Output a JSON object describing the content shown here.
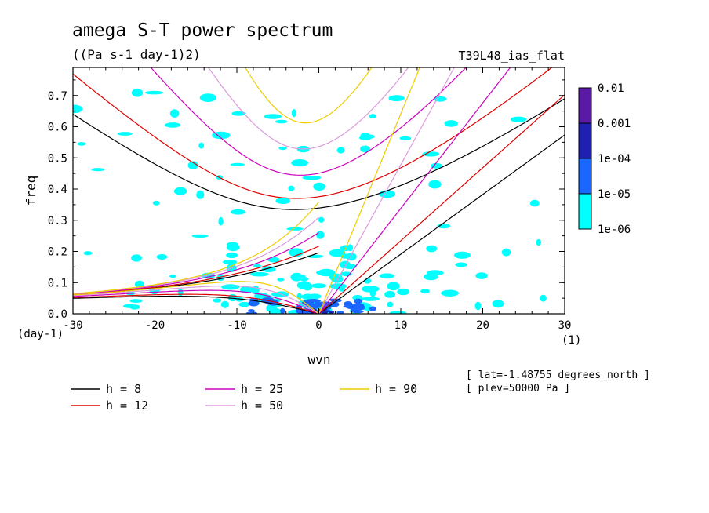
{
  "chart_data": {
    "type": "heatmap",
    "title": "amega S-T power spectrum",
    "subtitle": "((Pa s-1 day-1)2)",
    "run_label": "T39L48_ias_flat",
    "xlabel": "wvn",
    "ylabel": "freq",
    "x_unit": "(1)",
    "y_unit": "(day-1)",
    "xlim": [
      -30,
      30
    ],
    "ylim": [
      0.0,
      0.79
    ],
    "x_ticks": [
      -30,
      -20,
      -10,
      0,
      10,
      20,
      30
    ],
    "x_tick_labels": [
      "-30",
      "-20",
      "-10",
      "0",
      "10",
      "20",
      "30"
    ],
    "y_ticks": [
      0.0,
      0.1,
      0.2,
      0.3,
      0.4,
      0.5,
      0.6,
      0.7
    ],
    "y_tick_labels": [
      "0.0",
      "0.1",
      "0.2",
      "0.3",
      "0.4",
      "0.5",
      "0.6",
      "0.7"
    ],
    "colorbar": {
      "labels": [
        "0.01",
        "0.001",
        "1e-04",
        "1e-05",
        "1e-06"
      ],
      "colors": [
        "#5a1aa6",
        "#1f1fb0",
        "#1a66ff",
        "#00ffff"
      ]
    },
    "shading_colors": {
      "low": "#00ffff",
      "mid": "#1a66ff",
      "high": "#1f1fb0"
    },
    "dispersion_curves": [
      {
        "label": "h =  8",
        "h": 8,
        "color": "#000000"
      },
      {
        "label": "h = 12",
        "h": 12,
        "color": "#dd0000"
      },
      {
        "label": "h = 25",
        "h": 25,
        "color": "#cc00bb"
      },
      {
        "label": "h = 50",
        "h": 50,
        "color": "#dd99dd"
      },
      {
        "label": "h = 90",
        "h": 90,
        "color": "#eecc00"
      }
    ],
    "info": [
      "[ lat=-1.48755 degrees_north ]",
      "[ plev=50000 Pa ]"
    ]
  }
}
